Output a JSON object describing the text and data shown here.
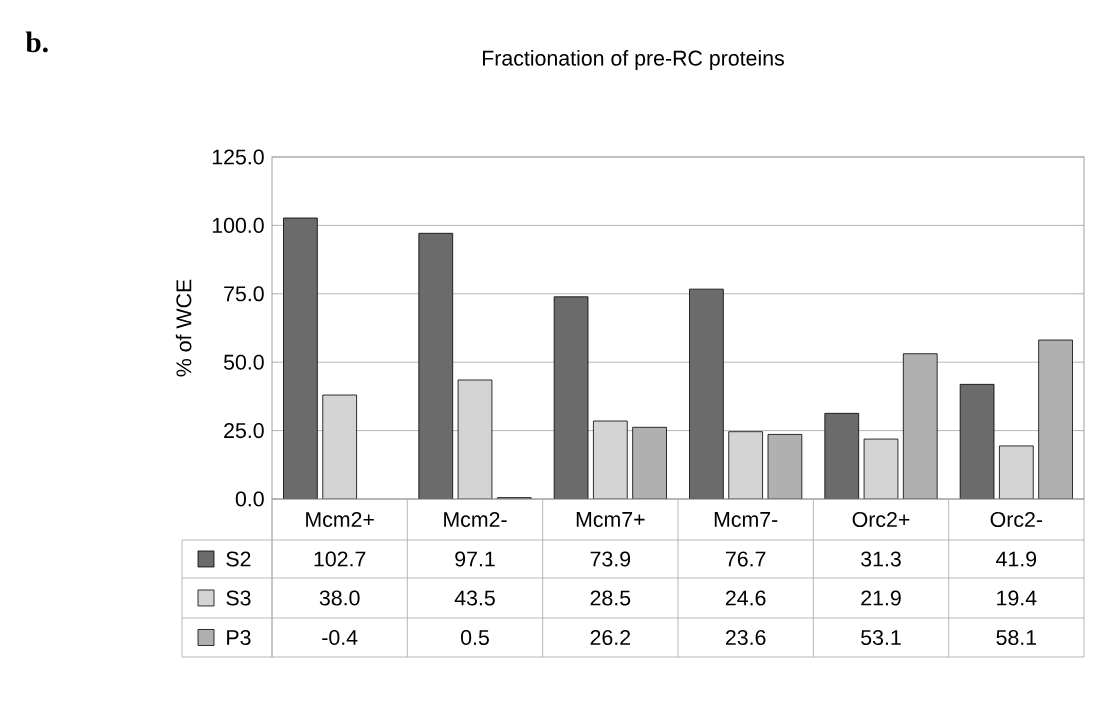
{
  "chart_data": {
    "type": "bar",
    "title": "Fractionation of pre-RC proteins",
    "ylabel": "% of WCE",
    "annotations": [
      "b."
    ],
    "categories": [
      "Mcm2+",
      "Mcm2-",
      "Mcm7+",
      "Mcm7-",
      "Orc2+",
      "Orc2-"
    ],
    "series": [
      {
        "name": "S2",
        "color": "#6b6b6b",
        "values": [
          102.7,
          97.1,
          73.9,
          76.7,
          31.3,
          41.9
        ],
        "value_labels": [
          "102.7",
          "97.1",
          "73.9",
          "76.7",
          "31.3",
          "41.9"
        ]
      },
      {
        "name": "S3",
        "color": "#d4d4d4",
        "values": [
          38.0,
          43.5,
          28.5,
          24.6,
          21.9,
          19.4
        ],
        "value_labels": [
          "38.0",
          "43.5",
          "28.5",
          "24.6",
          "21.9",
          "19.4"
        ]
      },
      {
        "name": "P3",
        "color": "#b0b0b0",
        "values": [
          null,
          0.5,
          26.2,
          23.6,
          53.1,
          58.1
        ],
        "value_labels": [
          "-0.4",
          "0.5",
          "26.2",
          "23.6",
          "53.1",
          "58.1"
        ]
      }
    ],
    "ylim": [
      0,
      125
    ],
    "yticks": [
      {
        "value": 0,
        "label": "0.0"
      },
      {
        "value": 25,
        "label": "25.0"
      },
      {
        "value": 50,
        "label": "50.0"
      },
      {
        "value": 75,
        "label": "75.0"
      },
      {
        "value": 100,
        "label": "100.0"
      },
      {
        "value": 125,
        "label": "125.0"
      }
    ],
    "grid": "y",
    "legend": "bottom"
  }
}
